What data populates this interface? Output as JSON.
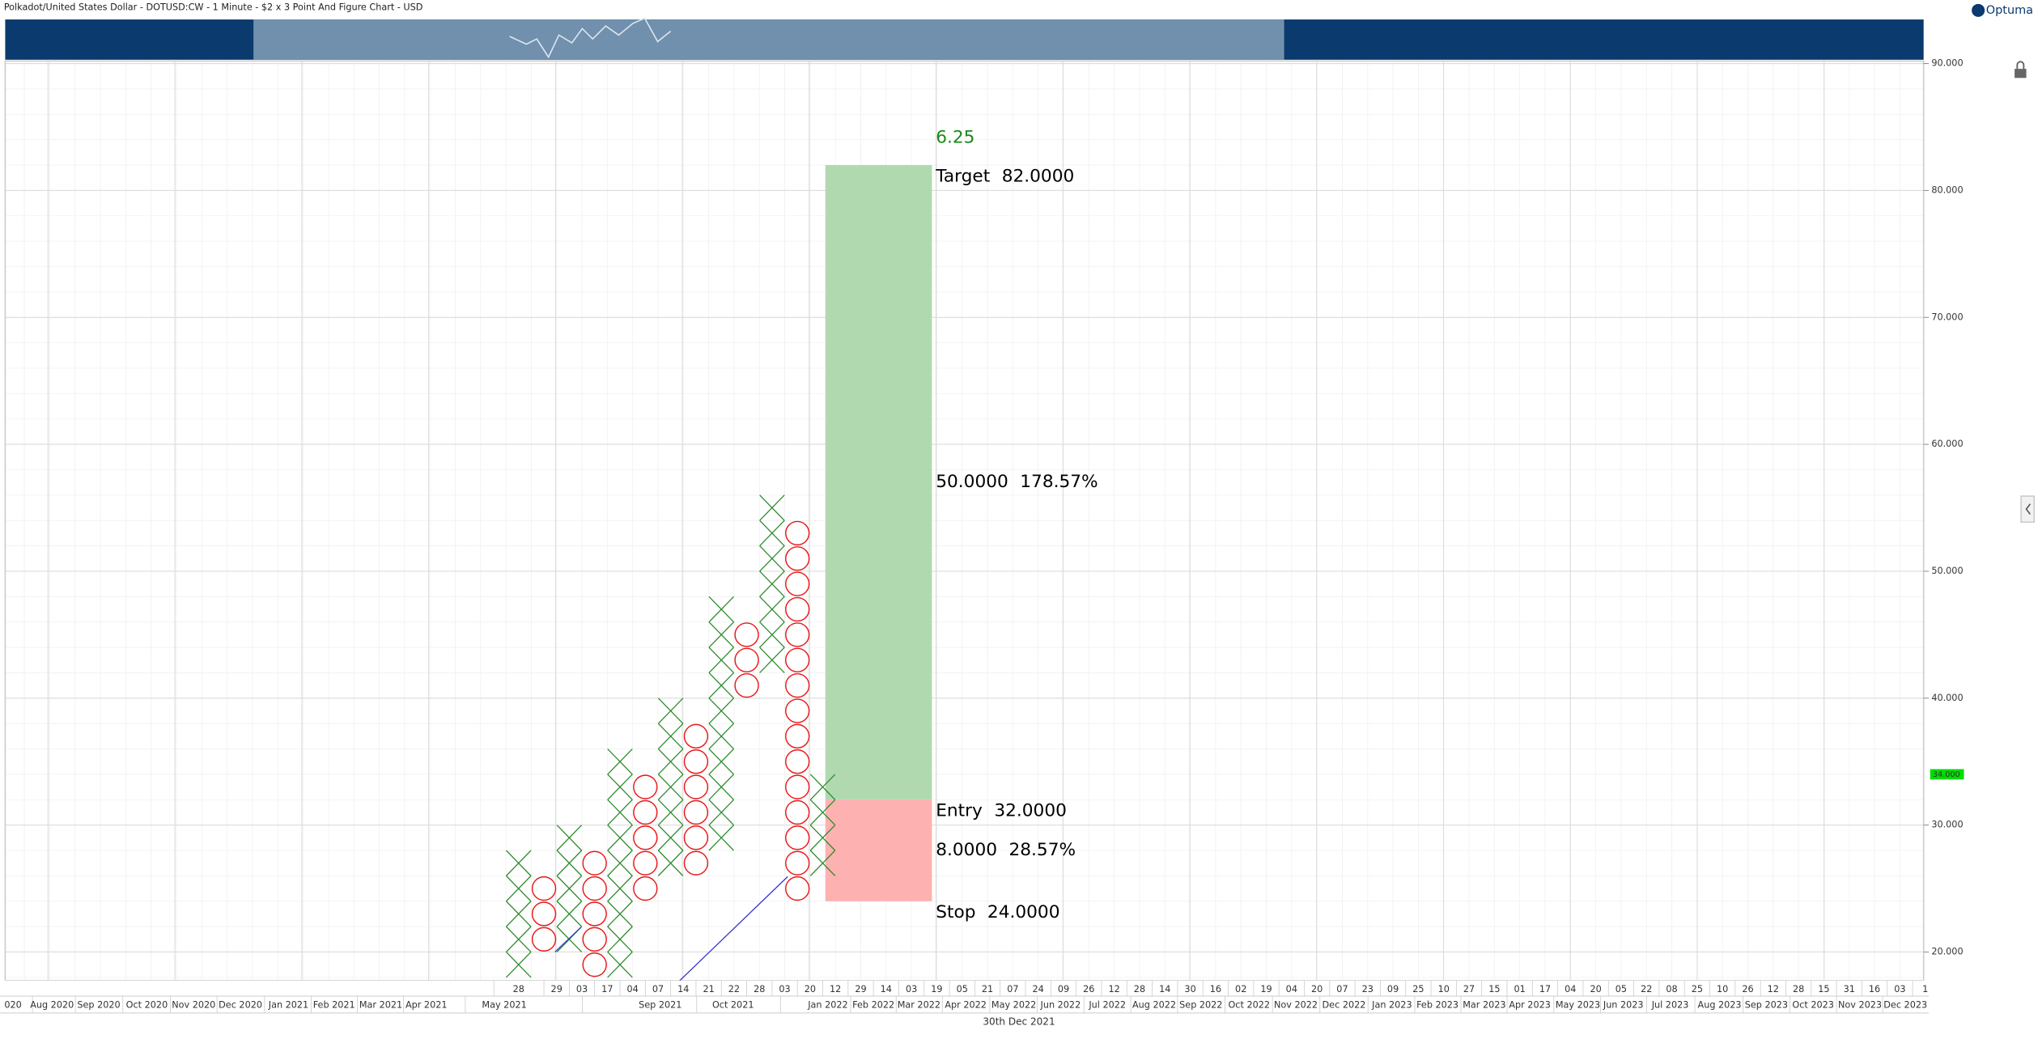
{
  "header": {
    "title": "Polkadot/United States Dollar - DOTUSD:CW - 1 Minute - $2 x 3 Point And Figure Chart - USD",
    "logo": "Optuma"
  },
  "chart_data": {
    "type": "point_and_figure",
    "box_size": 2,
    "ylim": [
      17.75,
      90.2
    ],
    "yticks": [
      {
        "value": 20,
        "label": "20.000"
      },
      {
        "value": 30,
        "label": "30.000"
      },
      {
        "value": 40,
        "label": "40.000"
      },
      {
        "value": 50,
        "label": "50.000"
      },
      {
        "value": 60,
        "label": "60.000"
      },
      {
        "value": 70,
        "label": "70.000"
      },
      {
        "value": 80,
        "label": "80.000"
      },
      {
        "value": 90,
        "label": "90.000"
      }
    ],
    "grid": true,
    "x_color": "#2e8b2e",
    "o_color": "#e8191a",
    "columns": [
      {
        "type": "X",
        "low": 18,
        "high": 28
      },
      {
        "type": "O",
        "low": 20,
        "high": 26
      },
      {
        "type": "X",
        "low": 20,
        "high": 30
      },
      {
        "type": "O",
        "low": 18,
        "high": 28
      },
      {
        "type": "X",
        "low": 18,
        "high": 36
      },
      {
        "type": "O",
        "low": 24,
        "high": 34
      },
      {
        "type": "X",
        "low": 26,
        "high": 40
      },
      {
        "type": "O",
        "low": 26,
        "high": 38
      },
      {
        "type": "X",
        "low": 28,
        "high": 48
      },
      {
        "type": "O",
        "low": 40,
        "high": 46
      },
      {
        "type": "X",
        "low": 42,
        "high": 56
      },
      {
        "type": "O",
        "low": 24,
        "high": 54
      },
      {
        "type": "X",
        "low": 26,
        "high": 34
      }
    ],
    "last_price": {
      "value": 34,
      "label": "34.000"
    },
    "trade": {
      "ratio": 6.25,
      "target": {
        "name": "Target",
        "value": 82,
        "label": "82.0000"
      },
      "entry": {
        "name": "Entry",
        "value": 32,
        "label": "32.0000"
      },
      "stop": {
        "name": "Stop",
        "value": 24,
        "label": "24.0000"
      },
      "reward": {
        "value": 50,
        "label": "50.0000",
        "pct": {
          "value": 178.57,
          "label": "178.57%"
        }
      },
      "risk": {
        "value": 8,
        "label": "8.0000",
        "pct": {
          "value": 28.57,
          "label": "28.57%"
        }
      }
    },
    "x_days": [
      "28",
      "29",
      "03",
      "17",
      "04",
      "07",
      "14",
      "21",
      "22",
      "28",
      "03",
      "20",
      "12",
      "29",
      "14",
      "03",
      "19",
      "05",
      "21",
      "07",
      "24",
      "09",
      "26",
      "12",
      "28",
      "14",
      "30",
      "16",
      "02",
      "19",
      "04",
      "20",
      "07",
      "23",
      "09",
      "25",
      "10",
      "27",
      "15",
      "01",
      "17",
      "04",
      "20",
      "05",
      "22",
      "08",
      "25",
      "10",
      "26",
      "12",
      "28",
      "15",
      "31",
      "16",
      "03",
      "1"
    ],
    "x_months": [
      "020",
      "Aug 2020",
      "Sep 2020",
      "Oct 2020",
      "Nov 2020",
      "Dec 2020",
      "Jan 2021",
      "Feb 2021",
      "Mar 2021",
      "Apr 2021",
      "May 2021",
      "Sep 2021",
      "Oct 2021",
      "Jan 2022",
      "Feb 2022",
      "Mar 2022",
      "Apr 2022",
      "May 2022",
      "Jun 2022",
      "Jul 2022",
      "Aug 2022",
      "Sep 2022",
      "Oct 2022",
      "Nov 2022",
      "Dec 2022",
      "Jan 2023",
      "Feb 2023",
      "Mar 2023",
      "Apr 2023",
      "May 2023",
      "Jun 2023",
      "Jul 2023",
      "Aug 2023",
      "Sep 2023",
      "Oct 2023",
      "Nov 2023",
      "Dec 2023"
    ],
    "footer": "30th Dec 2021"
  }
}
